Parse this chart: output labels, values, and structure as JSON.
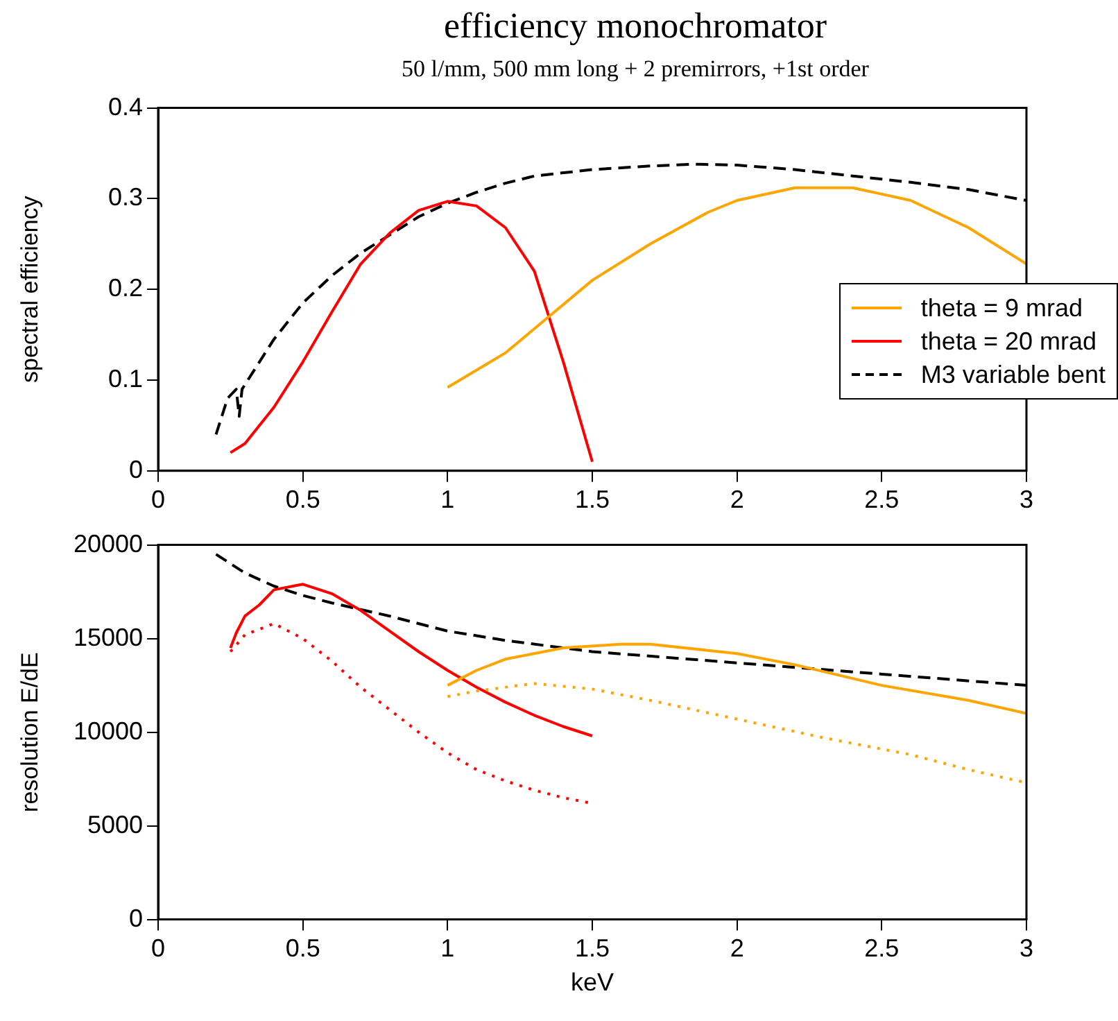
{
  "chart_data": [
    {
      "type": "line",
      "title": "efficiency monochromator",
      "subtitle": "50 l/mm, 500 mm long + 2 premirrors, +1st order",
      "ylabel": "spectral efficiency",
      "xlim": [
        0,
        3
      ],
      "xticks": [
        0,
        0.5,
        1,
        1.5,
        2,
        2.5,
        3
      ],
      "ylim": [
        0,
        0.4
      ],
      "yticks": [
        0,
        0.1,
        0.2,
        0.3,
        0.4
      ],
      "grid": false,
      "legend": "right",
      "marker": "none",
      "series": [
        {
          "name": "theta = 9 mrad",
          "color": "#ffa500",
          "line_style": "solid",
          "x": [
            1.0,
            1.2,
            1.5,
            1.7,
            1.9,
            2.0,
            2.2,
            2.4,
            2.6,
            2.8,
            3.0
          ],
          "values": [
            0.092,
            0.13,
            0.21,
            0.25,
            0.285,
            0.298,
            0.312,
            0.312,
            0.298,
            0.268,
            0.228
          ]
        },
        {
          "name": "theta = 20 mrad",
          "color": "#ff0000",
          "line_style": "solid",
          "x": [
            0.25,
            0.3,
            0.4,
            0.5,
            0.6,
            0.7,
            0.8,
            0.9,
            1.0,
            1.1,
            1.2,
            1.3,
            1.4,
            1.5
          ],
          "values": [
            0.02,
            0.03,
            0.07,
            0.12,
            0.175,
            0.228,
            0.262,
            0.287,
            0.297,
            0.292,
            0.268,
            0.22,
            0.12,
            0.01
          ]
        },
        {
          "name": "M3 variable bent",
          "color": "#000000",
          "line_style": "dashed",
          "x": [
            0.2,
            0.24,
            0.27,
            0.28,
            0.29,
            0.35,
            0.4,
            0.5,
            0.6,
            0.7,
            0.8,
            0.9,
            1.0,
            1.1,
            1.2,
            1.3,
            1.5,
            1.7,
            1.85,
            2.0,
            2.2,
            2.4,
            2.6,
            2.8,
            3.0
          ],
          "values": [
            0.04,
            0.08,
            0.09,
            0.06,
            0.09,
            0.12,
            0.145,
            0.185,
            0.215,
            0.24,
            0.26,
            0.28,
            0.295,
            0.307,
            0.317,
            0.325,
            0.332,
            0.336,
            0.338,
            0.337,
            0.332,
            0.325,
            0.318,
            0.31,
            0.298
          ]
        }
      ]
    },
    {
      "type": "line",
      "xlabel": "keV",
      "ylabel": "resolution E/dE",
      "xlim": [
        0,
        3
      ],
      "xticks": [
        0,
        0.5,
        1,
        1.5,
        2,
        2.5,
        3
      ],
      "ylim": [
        0,
        20000
      ],
      "yticks": [
        0,
        5000,
        10000,
        15000,
        20000
      ],
      "grid": false,
      "marker": "none",
      "series": [
        {
          "color": "#ffa500",
          "line_style": "solid",
          "x": [
            1.0,
            1.1,
            1.2,
            1.4,
            1.6,
            1.7,
            2.0,
            2.2,
            2.5,
            2.8,
            3.0
          ],
          "values": [
            12500,
            13300,
            13900,
            14500,
            14700,
            14700,
            14200,
            13600,
            12500,
            11700,
            11000
          ]
        },
        {
          "color": "#ffa500",
          "line_style": "dotted",
          "x": [
            1.0,
            1.1,
            1.3,
            1.5,
            1.7,
            2.0,
            2.3,
            2.6,
            2.8,
            3.0
          ],
          "values": [
            11900,
            12200,
            12600,
            12300,
            11700,
            10700,
            9700,
            8800,
            8000,
            7300
          ]
        },
        {
          "color": "#ff0000",
          "line_style": "solid",
          "x": [
            0.25,
            0.27,
            0.3,
            0.35,
            0.4,
            0.5,
            0.6,
            0.7,
            0.8,
            0.9,
            1.0,
            1.1,
            1.2,
            1.3,
            1.4,
            1.5
          ],
          "values": [
            14500,
            15300,
            16200,
            16800,
            17600,
            17900,
            17400,
            16500,
            15400,
            14300,
            13300,
            12400,
            11600,
            10900,
            10300,
            9800
          ]
        },
        {
          "color": "#ff0000",
          "line_style": "dotted",
          "x": [
            0.25,
            0.3,
            0.4,
            0.5,
            0.6,
            0.7,
            0.8,
            0.9,
            1.0,
            1.1,
            1.2,
            1.3,
            1.4,
            1.5
          ],
          "values": [
            14300,
            15200,
            15800,
            15000,
            13800,
            12400,
            11200,
            10000,
            8900,
            8000,
            7400,
            6900,
            6500,
            6200
          ]
        },
        {
          "color": "#000000",
          "line_style": "dashed",
          "x": [
            0.2,
            0.3,
            0.4,
            0.5,
            0.6,
            0.8,
            1.0,
            1.2,
            1.5,
            2.0,
            2.5,
            3.0
          ],
          "values": [
            19500,
            18500,
            17800,
            17300,
            16900,
            16200,
            15400,
            14900,
            14300,
            13700,
            13100,
            12500
          ]
        }
      ]
    }
  ]
}
